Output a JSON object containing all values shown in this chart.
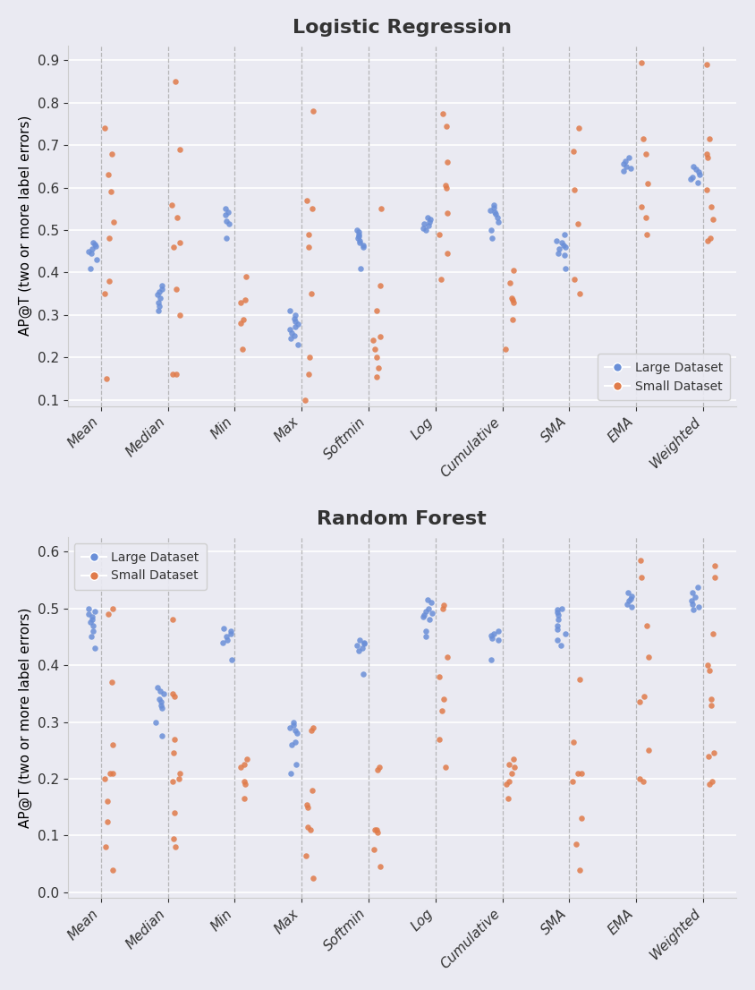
{
  "title1": "Logistic Regression",
  "title2": "Random Forest",
  "ylabel": "AP@T (two or more label errors)",
  "categories": [
    "Mean",
    "Median",
    "Min",
    "Max",
    "Softmin",
    "Log",
    "Cumulative",
    "SMA",
    "EMA",
    "Weighted"
  ],
  "blue_color": "#6a8fd8",
  "orange_color": "#e07b4a",
  "background_color": "#eaeaf2",
  "grid_color": "#ffffff",
  "lr_large": {
    "Mean": [
      0.47,
      0.466,
      0.461,
      0.455,
      0.45,
      0.445,
      0.43,
      0.41
    ],
    "Median": [
      0.37,
      0.36,
      0.355,
      0.348,
      0.34,
      0.33,
      0.32,
      0.31
    ],
    "Min": [
      0.55,
      0.543,
      0.535,
      0.522,
      0.515,
      0.48
    ],
    "Max": [
      0.31,
      0.3,
      0.292,
      0.285,
      0.278,
      0.272,
      0.265,
      0.258,
      0.252,
      0.245,
      0.23
    ],
    "Softmin": [
      0.5,
      0.495,
      0.49,
      0.485,
      0.48,
      0.475,
      0.47,
      0.465,
      0.46,
      0.41
    ],
    "Log": [
      0.53,
      0.525,
      0.52,
      0.515,
      0.51,
      0.505,
      0.5
    ],
    "Cumulative": [
      0.56,
      0.553,
      0.547,
      0.542,
      0.538,
      0.53,
      0.52,
      0.5,
      0.48
    ],
    "SMA": [
      0.49,
      0.475,
      0.47,
      0.465,
      0.46,
      0.455,
      0.445,
      0.44,
      0.41
    ],
    "EMA": [
      0.67,
      0.662,
      0.655,
      0.65,
      0.645,
      0.64
    ],
    "Weighted": [
      0.65,
      0.643,
      0.637,
      0.631,
      0.625,
      0.62,
      0.612
    ]
  },
  "lr_small": {
    "Mean": [
      0.74,
      0.68,
      0.63,
      0.59,
      0.52,
      0.48,
      0.38,
      0.35,
      0.15
    ],
    "Median": [
      0.85,
      0.69,
      0.56,
      0.53,
      0.47,
      0.46,
      0.36,
      0.3,
      0.16,
      0.16
    ],
    "Min": [
      0.39,
      0.335,
      0.33,
      0.29,
      0.28,
      0.22
    ],
    "Max": [
      0.78,
      0.57,
      0.55,
      0.49,
      0.46,
      0.35,
      0.2,
      0.16,
      0.1
    ],
    "Softmin": [
      0.55,
      0.37,
      0.31,
      0.25,
      0.24,
      0.22,
      0.2,
      0.175,
      0.155
    ],
    "Log": [
      0.775,
      0.745,
      0.66,
      0.605,
      0.6,
      0.54,
      0.49,
      0.445,
      0.385
    ],
    "Cumulative": [
      0.405,
      0.375,
      0.34,
      0.335,
      0.33,
      0.29,
      0.22
    ],
    "SMA": [
      0.74,
      0.685,
      0.595,
      0.515,
      0.385,
      0.35
    ],
    "EMA": [
      0.895,
      0.715,
      0.68,
      0.61,
      0.555,
      0.53,
      0.49
    ],
    "Weighted": [
      0.89,
      0.715,
      0.68,
      0.67,
      0.595,
      0.555,
      0.525,
      0.48,
      0.475
    ]
  },
  "rf_large": {
    "Mean": [
      0.5,
      0.495,
      0.49,
      0.485,
      0.48,
      0.475,
      0.47,
      0.46,
      0.45,
      0.43
    ],
    "Median": [
      0.36,
      0.355,
      0.35,
      0.34,
      0.335,
      0.33,
      0.325,
      0.3,
      0.275
    ],
    "Min": [
      0.465,
      0.46,
      0.455,
      0.45,
      0.445,
      0.44,
      0.41
    ],
    "Max": [
      0.3,
      0.295,
      0.29,
      0.285,
      0.28,
      0.265,
      0.26,
      0.225,
      0.21
    ],
    "Softmin": [
      0.445,
      0.44,
      0.438,
      0.435,
      0.43,
      0.425,
      0.385
    ],
    "Log": [
      0.515,
      0.51,
      0.5,
      0.495,
      0.492,
      0.488,
      0.485,
      0.48,
      0.46,
      0.45
    ],
    "Cumulative": [
      0.46,
      0.455,
      0.452,
      0.448,
      0.445,
      0.41
    ],
    "SMA": [
      0.5,
      0.497,
      0.493,
      0.488,
      0.48,
      0.47,
      0.463,
      0.455,
      0.445,
      0.435
    ],
    "EMA": [
      0.527,
      0.522,
      0.517,
      0.513,
      0.508,
      0.502
    ],
    "Weighted": [
      0.537,
      0.528,
      0.52,
      0.513,
      0.507,
      0.502,
      0.497
    ]
  },
  "rf_small": {
    "Mean": [
      0.5,
      0.49,
      0.37,
      0.26,
      0.21,
      0.21,
      0.2,
      0.16,
      0.125,
      0.08,
      0.04
    ],
    "Median": [
      0.48,
      0.35,
      0.345,
      0.27,
      0.245,
      0.21,
      0.2,
      0.195,
      0.14,
      0.095,
      0.08
    ],
    "Min": [
      0.235,
      0.225,
      0.22,
      0.195,
      0.19,
      0.165
    ],
    "Max": [
      0.29,
      0.285,
      0.18,
      0.155,
      0.15,
      0.115,
      0.11,
      0.065,
      0.025
    ],
    "Softmin": [
      0.22,
      0.215,
      0.11,
      0.11,
      0.105,
      0.075,
      0.045
    ],
    "Log": [
      0.505,
      0.5,
      0.415,
      0.38,
      0.34,
      0.32,
      0.27,
      0.22
    ],
    "Cumulative": [
      0.235,
      0.225,
      0.22,
      0.21,
      0.195,
      0.19,
      0.165
    ],
    "SMA": [
      0.375,
      0.265,
      0.21,
      0.21,
      0.195,
      0.13,
      0.085,
      0.04
    ],
    "EMA": [
      0.585,
      0.555,
      0.47,
      0.415,
      0.345,
      0.335,
      0.25,
      0.2,
      0.195
    ],
    "Weighted": [
      0.575,
      0.555,
      0.455,
      0.4,
      0.39,
      0.34,
      0.33,
      0.245,
      0.24,
      0.195,
      0.19
    ]
  },
  "ylim1": [
    0.085,
    0.935
  ],
  "ylim2": [
    -0.01,
    0.625
  ],
  "yticks1": [
    0.1,
    0.2,
    0.3,
    0.4,
    0.5,
    0.6,
    0.7,
    0.8,
    0.9
  ],
  "yticks2": [
    0.0,
    0.1,
    0.2,
    0.3,
    0.4,
    0.5,
    0.6
  ]
}
